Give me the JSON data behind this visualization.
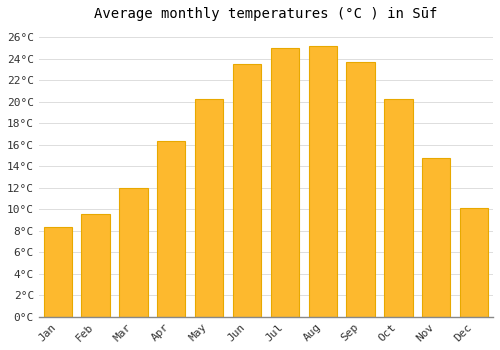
{
  "months": [
    "Jan",
    "Feb",
    "Mar",
    "Apr",
    "May",
    "Jun",
    "Jul",
    "Aug",
    "Sep",
    "Oct",
    "Nov",
    "Dec"
  ],
  "values": [
    8.3,
    9.6,
    12.0,
    16.3,
    20.2,
    23.5,
    25.0,
    25.2,
    23.7,
    20.2,
    14.8,
    10.1
  ],
  "bar_color": "#FDB92E",
  "bar_edge_color": "#E8A800",
  "title": "Average monthly temperatures (°C ) in Sūf",
  "ylim": [
    0,
    27
  ],
  "ytick_step": 2,
  "background_color": "#FFFFFF",
  "grid_color": "#DDDDDD",
  "title_fontsize": 10,
  "tick_fontsize": 8,
  "bar_width": 0.75
}
